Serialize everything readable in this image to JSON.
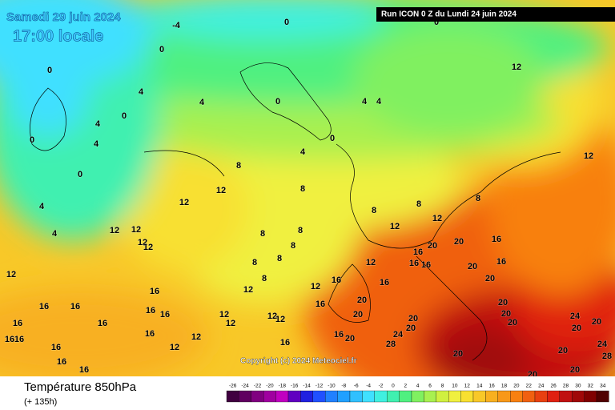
{
  "header": {
    "date": "Samedi 29 juin 2024",
    "time": "17:00 locale",
    "run": "Run ICON 0 Z du Lundi 24 juin 2024"
  },
  "copyright": "Copyright (c) 2024 Meteociel.fr",
  "legend": {
    "title": "Température 850hPa",
    "lead": "(+ 135h)",
    "ticks": [
      -26,
      -24,
      -22,
      -20,
      -18,
      -16,
      -14,
      -12,
      -10,
      -8,
      -6,
      -4,
      -2,
      0,
      2,
      4,
      6,
      8,
      10,
      12,
      14,
      16,
      18,
      20,
      22,
      24,
      26,
      28,
      30,
      32,
      34
    ],
    "colors": [
      "#400040",
      "#600060",
      "#800080",
      "#a000a0",
      "#c000c0",
      "#6000c0",
      "#2020e0",
      "#2050ff",
      "#2080ff",
      "#20a0ff",
      "#30c0ff",
      "#40e0ff",
      "#40f0e0",
      "#40f0b0",
      "#50f080",
      "#80f060",
      "#a8f050",
      "#d0f040",
      "#f0f040",
      "#f8e030",
      "#f8c828",
      "#f8b020",
      "#f89818",
      "#f88010",
      "#f06010",
      "#e84010",
      "#e02010",
      "#c01010",
      "#a00808",
      "#800000",
      "#500000"
    ]
  },
  "map_labels": [
    0,
    -4,
    0,
    0,
    0,
    4,
    4,
    4,
    0,
    0,
    4,
    0,
    4,
    4,
    0,
    0,
    4,
    4,
    4,
    8,
    12,
    12,
    8,
    8,
    8,
    8,
    12,
    12,
    12,
    12,
    12,
    12,
    12,
    12,
    12,
    8,
    8,
    8,
    8,
    8,
    8,
    12,
    12,
    16,
    16,
    12,
    16,
    20,
    16,
    16,
    16,
    16,
    16,
    16,
    16,
    12,
    12,
    12,
    12,
    12,
    12,
    16,
    16,
    16,
    16,
    16,
    16,
    16,
    16,
    20,
    20,
    20,
    20,
    24,
    28,
    20,
    20,
    16,
    16,
    16,
    16,
    16,
    20,
    20,
    20,
    20,
    20,
    24,
    20,
    20,
    24,
    28,
    20,
    20,
    20,
    20
  ]
}
